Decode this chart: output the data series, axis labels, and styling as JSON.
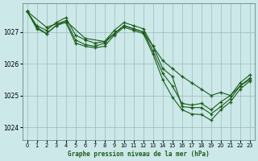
{
  "title": "Graphe pression niveau de la mer (hPa)",
  "bg_color": "#cce8e8",
  "grid_color": "#99bbbb",
  "line_color": "#1a5c1a",
  "xlim": [
    -0.5,
    23.5
  ],
  "ylim": [
    1023.6,
    1027.9
  ],
  "yticks": [
    1024,
    1025,
    1026,
    1027
  ],
  "xticks": [
    0,
    1,
    2,
    3,
    4,
    5,
    6,
    7,
    8,
    9,
    10,
    11,
    12,
    13,
    14,
    15,
    16,
    17,
    18,
    19,
    20,
    21,
    22,
    23
  ],
  "series": [
    {
      "x": [
        0,
        1,
        2,
        3,
        4,
        5,
        6,
        7,
        8,
        9,
        10,
        11,
        12,
        13,
        14,
        15,
        16,
        17,
        18,
        19,
        20,
        21,
        22,
        23
      ],
      "y": [
        1027.65,
        1027.2,
        1027.05,
        1027.3,
        1027.45,
        1026.9,
        1026.75,
        1026.65,
        1026.7,
        1027.05,
        1027.3,
        1027.2,
        1027.1,
        1026.55,
        1026.1,
        1025.85,
        1025.6,
        1025.4,
        1025.2,
        1025.0,
        1025.1,
        1025.0,
        1025.3,
        1025.5
      ]
    },
    {
      "x": [
        0,
        1,
        2,
        3,
        4,
        5,
        6,
        7,
        8,
        9,
        10,
        11,
        12,
        13,
        14,
        15,
        16,
        17,
        18,
        19,
        20,
        21,
        22,
        23
      ],
      "y": [
        1027.65,
        1027.15,
        1026.95,
        1027.2,
        1027.35,
        1026.75,
        1026.6,
        1026.55,
        1026.65,
        1026.95,
        1027.2,
        1027.1,
        1027.0,
        1026.4,
        1025.7,
        1025.3,
        1024.75,
        1024.7,
        1024.75,
        1024.55,
        1024.8,
        1025.0,
        1025.4,
        1025.65
      ]
    },
    {
      "x": [
        0,
        1,
        2,
        3,
        4,
        5,
        6,
        7,
        8,
        9,
        10,
        11,
        12,
        13,
        14,
        15,
        16,
        17,
        18,
        19,
        20,
        21,
        22,
        23
      ],
      "y": [
        1027.65,
        1027.1,
        1026.95,
        1027.2,
        1027.3,
        1026.65,
        1026.55,
        1026.5,
        1026.55,
        1026.9,
        1027.15,
        1027.05,
        1026.95,
        1026.3,
        1025.5,
        1024.95,
        1024.55,
        1024.42,
        1024.4,
        1024.22,
        1024.55,
        1024.8,
        1025.2,
        1025.45
      ]
    },
    {
      "x": [
        0,
        2,
        4,
        6,
        8,
        9,
        10,
        11,
        12,
        13,
        14,
        15,
        16,
        17,
        18,
        19,
        20,
        21,
        22,
        23
      ],
      "y": [
        1027.65,
        1027.15,
        1027.35,
        1026.8,
        1026.7,
        1026.95,
        1027.2,
        1027.1,
        1027.0,
        1026.55,
        1025.85,
        1025.6,
        1024.65,
        1024.62,
        1024.62,
        1024.42,
        1024.65,
        1024.9,
        1025.3,
        1025.55
      ]
    }
  ]
}
